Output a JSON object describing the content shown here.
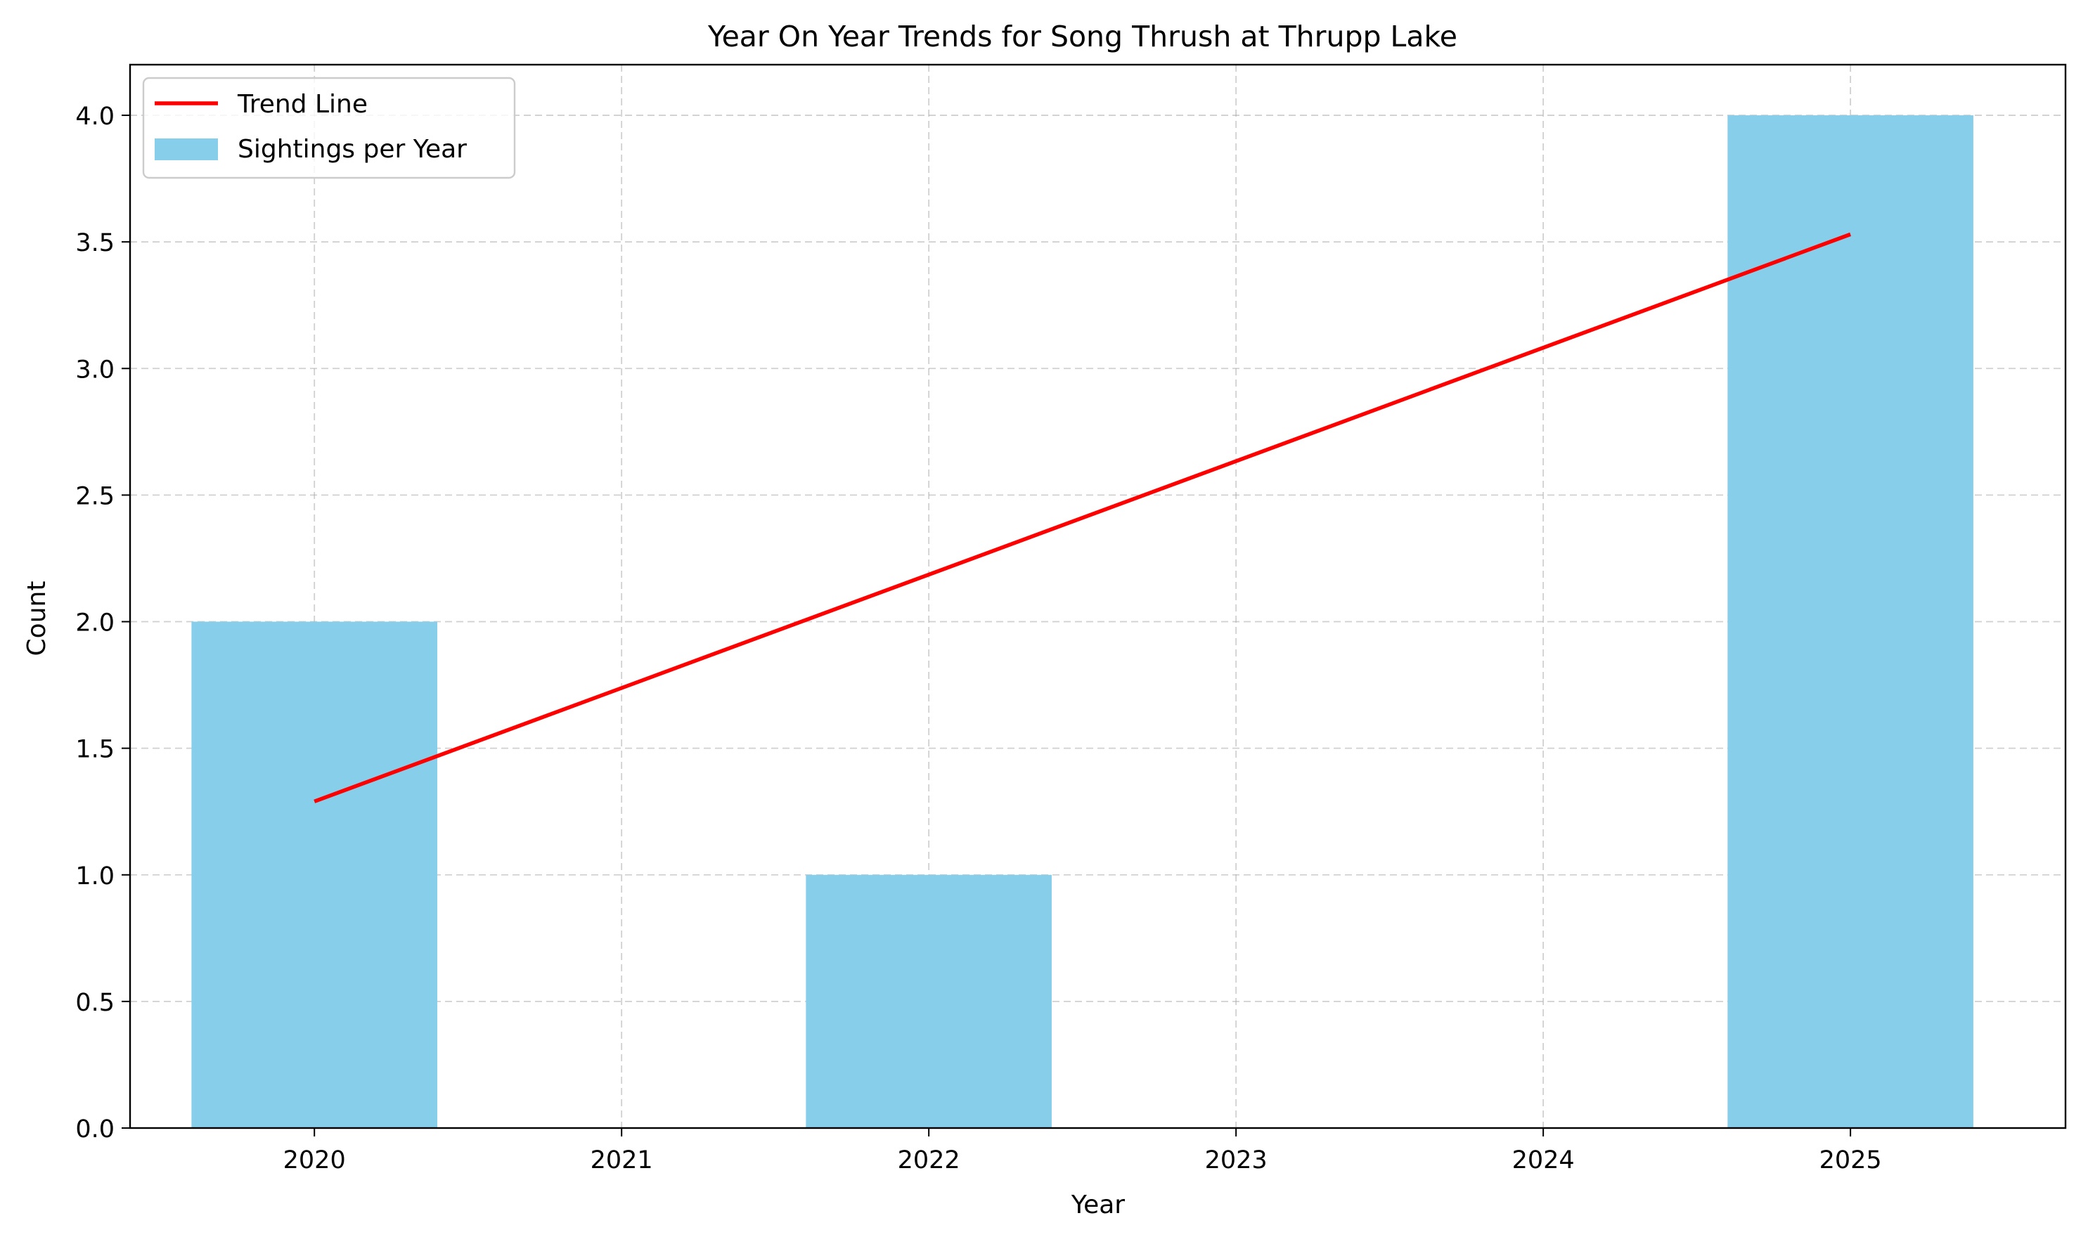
{
  "chart_data": {
    "type": "bar",
    "title": "Year On Year Trends for Song Thrush at Thrupp Lake",
    "xlabel": "Year",
    "ylabel": "Count",
    "categories": [
      "2020",
      "2021",
      "2022",
      "2023",
      "2024",
      "2025"
    ],
    "series": [
      {
        "name": "Sightings per Year",
        "type": "bar",
        "x": [
          2020,
          2022,
          2025
        ],
        "values": [
          2,
          1,
          4
        ],
        "color": "#87CEEB"
      },
      {
        "name": "Trend Line",
        "type": "line",
        "x": [
          2020,
          2025
        ],
        "values": [
          1.29,
          3.53
        ],
        "color": "#FF0000"
      }
    ],
    "xlim": [
      2019.4,
      2025.7
    ],
    "ylim": [
      0,
      4.2
    ],
    "yticks": [
      "0.0",
      "0.5",
      "1.0",
      "1.5",
      "2.0",
      "2.5",
      "3.0",
      "3.5",
      "4.0"
    ],
    "grid": true,
    "legend_position": "upper left"
  }
}
